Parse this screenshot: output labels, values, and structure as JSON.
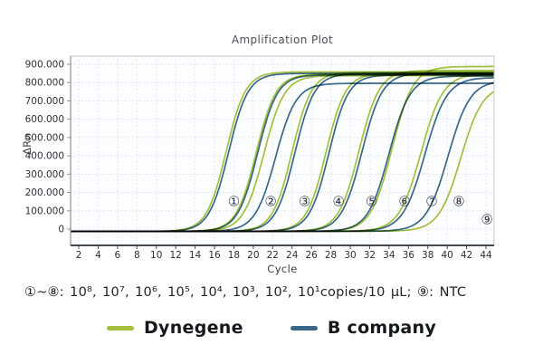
{
  "title": "Amplification Plot",
  "caption": "①~⑧:  10⁸, 10⁷, 10⁶, 10⁵, 10⁴, 10³, 10², 10¹copies/10 μL;  ⑨: NTC",
  "legend": {
    "items": [
      {
        "label": "Dynegene",
        "color": "#a2bf3e"
      },
      {
        "label": "B company",
        "color": "#3a6788"
      }
    ]
  },
  "colors": {
    "dynegene_line": "#a2bf3e",
    "bcompany_line": "#3a6788",
    "grid": "#dbe0e8",
    "plot_border": "#c2c8d1",
    "x_axis": "#454a51",
    "y_axis": "#8d939b",
    "tick_text": "#2c3137",
    "annotation_text": "#343a41",
    "plot_background": "#fcfdff"
  },
  "chart_data": {
    "type": "line",
    "title": "Amplification Plot",
    "xlabel": "Cycle",
    "ylabel": "ΔRn",
    "xlim": [
      1,
      44.85
    ],
    "ylim": [
      -89,
      943
    ],
    "grid": true,
    "legend_position": "bottom",
    "x_ticks": [
      2,
      4,
      6,
      8,
      10,
      12,
      14,
      16,
      18,
      20,
      22,
      24,
      26,
      28,
      30,
      32,
      34,
      36,
      38,
      40,
      42,
      44
    ],
    "y_ticks": [
      {
        "label": "900.000",
        "value": 900
      },
      {
        "label": "800.000",
        "value": 800
      },
      {
        "label": "700.000",
        "value": 700
      },
      {
        "label": "600.000",
        "value": 600
      },
      {
        "label": "500.000",
        "value": 500
      },
      {
        "label": "400.000",
        "value": 400
      },
      {
        "label": "300.000",
        "value": 300
      },
      {
        "label": "200.000",
        "value": 200
      },
      {
        "label": "100.000",
        "value": 100
      },
      {
        "label": "0",
        "value": 0
      }
    ],
    "baseline": -12,
    "series": [
      {
        "id": "dyn-1",
        "company": "Dynegene",
        "group": "① 10⁸",
        "color": "#a2bf3e",
        "midpoint": 17.2,
        "plateau": 858,
        "steepness": 1.0
      },
      {
        "id": "dyn-2a",
        "company": "Dynegene",
        "group": "② 10⁷",
        "color": "#a2bf3e",
        "midpoint": 20.3,
        "plateau": 846,
        "steepness": 0.98
      },
      {
        "id": "dyn-2b",
        "company": "Dynegene",
        "group": "② 10⁷",
        "color": "#a2bf3e",
        "midpoint": 21.1,
        "plateau": 838,
        "steepness": 0.95
      },
      {
        "id": "dyn-3",
        "company": "Dynegene",
        "group": "③ 10⁶",
        "color": "#a2bf3e",
        "midpoint": 24.0,
        "plateau": 856,
        "steepness": 1.0
      },
      {
        "id": "dyn-4",
        "company": "Dynegene",
        "group": "④ 10⁵",
        "color": "#a2bf3e",
        "midpoint": 27.5,
        "plateau": 850,
        "steepness": 1.0
      },
      {
        "id": "dyn-5",
        "company": "Dynegene",
        "group": "⑤ 10⁴",
        "color": "#a2bf3e",
        "midpoint": 30.9,
        "plateau": 866,
        "steepness": 0.95
      },
      {
        "id": "dyn-6",
        "company": "Dynegene",
        "group": "⑥ 10³",
        "color": "#a2bf3e",
        "midpoint": 34.3,
        "plateau": 888,
        "steepness": 0.92
      },
      {
        "id": "dyn-7",
        "company": "Dynegene",
        "group": "⑦ 10²",
        "color": "#a2bf3e",
        "midpoint": 37.3,
        "plateau": 848,
        "steepness": 0.88
      },
      {
        "id": "dyn-8",
        "company": "Dynegene",
        "group": "⑧ 10¹",
        "color": "#a2bf3e",
        "midpoint": 41.4,
        "plateau": 788,
        "steepness": 0.88
      },
      {
        "id": "b-1",
        "company": "B company",
        "group": "① 10⁸",
        "color": "#3a6788",
        "midpoint": 17.45,
        "plateau": 850,
        "steepness": 1.0
      },
      {
        "id": "b-2a",
        "company": "B company",
        "group": "② 10⁷",
        "color": "#3a6788",
        "midpoint": 20.45,
        "plateau": 842,
        "steepness": 0.98
      },
      {
        "id": "b-2b",
        "company": "B company",
        "group": "② 10⁷",
        "color": "#3a6788",
        "midpoint": 22.3,
        "plateau": 796,
        "steepness": 0.95
      },
      {
        "id": "b-3",
        "company": "B company",
        "group": "③ 10⁶",
        "color": "#3a6788",
        "midpoint": 24.3,
        "plateau": 848,
        "steepness": 1.0
      },
      {
        "id": "b-4",
        "company": "B company",
        "group": "④ 10⁵",
        "color": "#3a6788",
        "midpoint": 27.8,
        "plateau": 842,
        "steepness": 1.0
      },
      {
        "id": "b-5",
        "company": "B company",
        "group": "⑤ 10⁴",
        "color": "#3a6788",
        "midpoint": 31.2,
        "plateau": 852,
        "steepness": 0.95
      },
      {
        "id": "b-6",
        "company": "B company",
        "group": "⑥ 10³",
        "color": "#3a6788",
        "midpoint": 34.0,
        "plateau": 836,
        "steepness": 0.92
      },
      {
        "id": "b-7",
        "company": "B company",
        "group": "⑦ 10²",
        "color": "#3a6788",
        "midpoint": 37.7,
        "plateau": 828,
        "steepness": 0.88
      },
      {
        "id": "b-8",
        "company": "B company",
        "group": "⑧ 10¹",
        "color": "#3a6788",
        "midpoint": 40.1,
        "plateau": 812,
        "steepness": 0.88
      }
    ],
    "annotations": [
      {
        "label": "①",
        "cycle": 18.0,
        "value": 150
      },
      {
        "label": "②",
        "cycle": 21.8,
        "value": 150
      },
      {
        "label": "③",
        "cycle": 25.3,
        "value": 150
      },
      {
        "label": "④",
        "cycle": 28.8,
        "value": 150
      },
      {
        "label": "⑤",
        "cycle": 32.2,
        "value": 150
      },
      {
        "label": "⑥",
        "cycle": 35.6,
        "value": 150
      },
      {
        "label": "⑦",
        "cycle": 38.4,
        "value": 150
      },
      {
        "label": "⑧",
        "cycle": 41.2,
        "value": 150
      },
      {
        "label": "⑨",
        "cycle": 44.1,
        "value": 52
      }
    ]
  }
}
